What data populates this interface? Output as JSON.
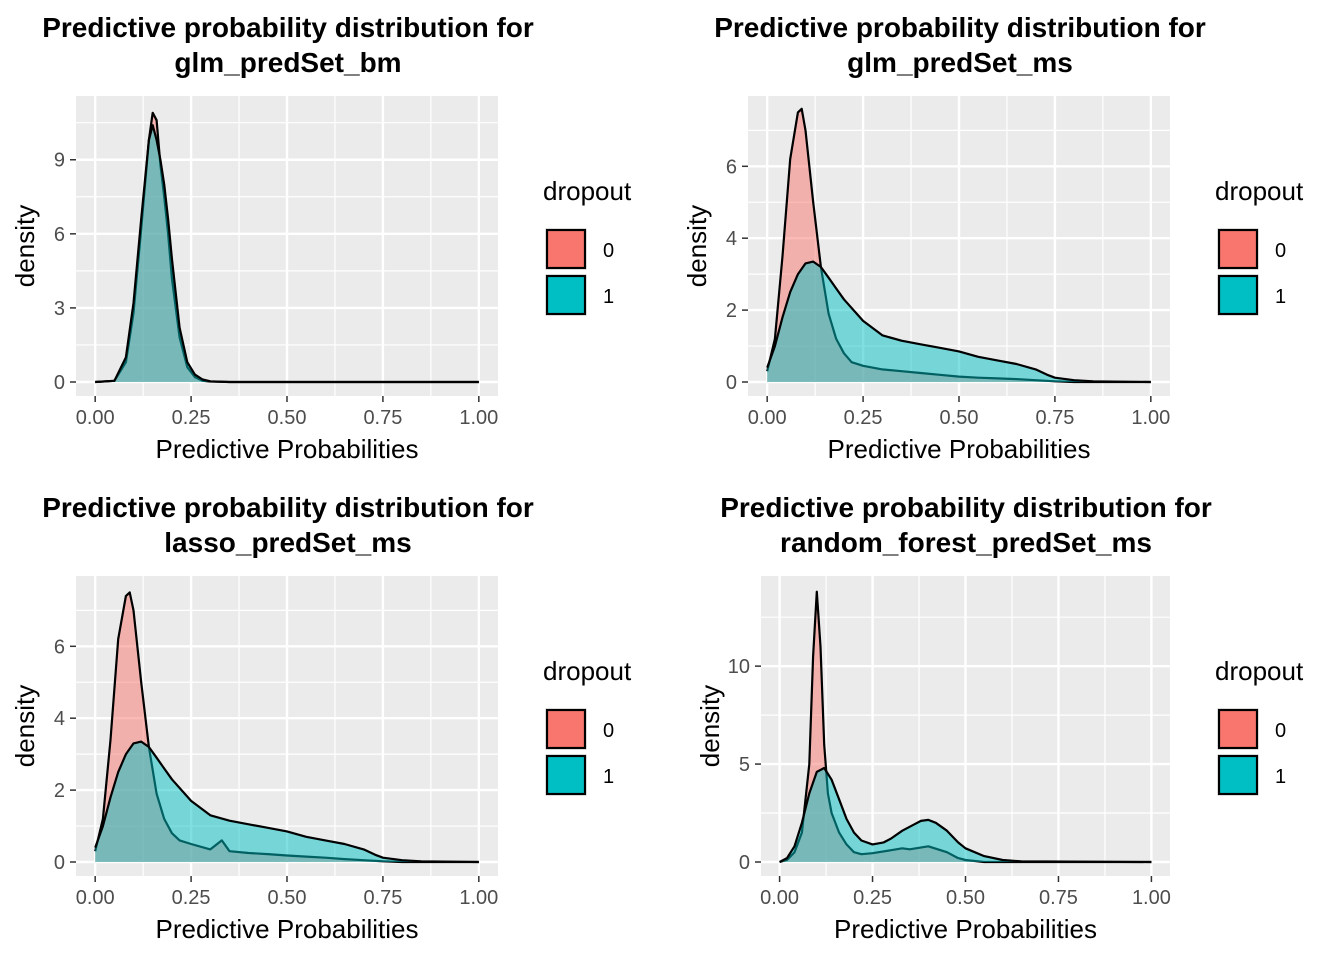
{
  "chart_data": [
    {
      "type": "area",
      "title_lines": [
        "Predictive probability distribution for",
        "glm_predSet_bm"
      ],
      "xlabel": "Predictive Probabilities",
      "ylabel": "density",
      "xlim": [
        0,
        1
      ],
      "ylim": [
        0,
        11.5
      ],
      "xticks": [
        0,
        0.25,
        0.5,
        0.75,
        1
      ],
      "xtick_labels": [
        "0.00",
        "0.25",
        "0.50",
        "0.75",
        "1.00"
      ],
      "yticks": [
        0,
        3,
        6,
        9
      ],
      "ytick_labels": [
        "0",
        "3",
        "6",
        "9"
      ],
      "grid": true,
      "legend": {
        "title": "dropout",
        "position": "right",
        "entries": [
          "0",
          "1"
        ]
      },
      "series": [
        {
          "name": "0",
          "color": "#F8766D",
          "x": [
            0.0,
            0.05,
            0.08,
            0.1,
            0.12,
            0.14,
            0.15,
            0.16,
            0.17,
            0.18,
            0.19,
            0.2,
            0.22,
            0.24,
            0.26,
            0.28,
            0.3,
            0.35,
            1.0
          ],
          "y": [
            0,
            0.05,
            0.8,
            2.8,
            6.2,
            9.8,
            10.9,
            10.6,
            8.8,
            7.5,
            6.0,
            4.2,
            1.8,
            0.6,
            0.2,
            0.05,
            0.02,
            0,
            0
          ]
        },
        {
          "name": "1",
          "color": "#00BFC4",
          "x": [
            0.0,
            0.05,
            0.08,
            0.1,
            0.12,
            0.14,
            0.15,
            0.16,
            0.17,
            0.18,
            0.19,
            0.2,
            0.22,
            0.24,
            0.26,
            0.28,
            0.3,
            0.35,
            1.0
          ],
          "y": [
            0,
            0.05,
            1.0,
            3.2,
            6.6,
            9.8,
            10.4,
            9.8,
            9.0,
            8.0,
            6.6,
            5.0,
            2.2,
            0.8,
            0.3,
            0.1,
            0.03,
            0,
            0
          ]
        }
      ]
    },
    {
      "type": "area",
      "title_lines": [
        "Predictive probability distribution for",
        "glm_predSet_ms"
      ],
      "xlabel": "Predictive Probabilities",
      "ylabel": "density",
      "xlim": [
        0,
        1
      ],
      "ylim": [
        0,
        7.9
      ],
      "xticks": [
        0,
        0.25,
        0.5,
        0.75,
        1
      ],
      "xtick_labels": [
        "0.00",
        "0.25",
        "0.50",
        "0.75",
        "1.00"
      ],
      "yticks": [
        0,
        2,
        4,
        6
      ],
      "ytick_labels": [
        "0",
        "2",
        "4",
        "6"
      ],
      "grid": true,
      "legend": {
        "title": "dropout",
        "position": "right",
        "entries": [
          "0",
          "1"
        ]
      },
      "series": [
        {
          "name": "0",
          "color": "#F8766D",
          "x": [
            0.0,
            0.02,
            0.04,
            0.06,
            0.08,
            0.09,
            0.1,
            0.12,
            0.14,
            0.16,
            0.18,
            0.2,
            0.22,
            0.25,
            0.3,
            0.35,
            0.4,
            0.45,
            0.5,
            0.55,
            0.6,
            0.65,
            0.7,
            0.75,
            0.8,
            1.0
          ],
          "y": [
            0.3,
            1.2,
            3.5,
            6.2,
            7.5,
            7.6,
            7.0,
            5.0,
            3.2,
            1.9,
            1.2,
            0.8,
            0.55,
            0.45,
            0.35,
            0.3,
            0.25,
            0.2,
            0.15,
            0.12,
            0.1,
            0.08,
            0.05,
            0.02,
            0,
            0
          ]
        },
        {
          "name": "1",
          "color": "#00BFC4",
          "x": [
            0.0,
            0.02,
            0.04,
            0.06,
            0.08,
            0.1,
            0.12,
            0.14,
            0.16,
            0.18,
            0.2,
            0.25,
            0.3,
            0.35,
            0.4,
            0.45,
            0.5,
            0.55,
            0.6,
            0.65,
            0.7,
            0.73,
            0.75,
            0.8,
            0.85,
            1.0
          ],
          "y": [
            0.4,
            1.0,
            1.8,
            2.5,
            3.0,
            3.3,
            3.35,
            3.2,
            2.9,
            2.6,
            2.3,
            1.7,
            1.3,
            1.15,
            1.05,
            0.95,
            0.85,
            0.7,
            0.6,
            0.5,
            0.35,
            0.2,
            0.12,
            0.05,
            0.02,
            0
          ]
        }
      ]
    },
    {
      "type": "area",
      "title_lines": [
        "Predictive probability distribution for",
        "lasso_predSet_ms"
      ],
      "xlabel": "Predictive Probabilities",
      "ylabel": "density",
      "xlim": [
        0,
        1
      ],
      "ylim": [
        0,
        7.9
      ],
      "xticks": [
        0,
        0.25,
        0.5,
        0.75,
        1
      ],
      "xtick_labels": [
        "0.00",
        "0.25",
        "0.50",
        "0.75",
        "1.00"
      ],
      "yticks": [
        0,
        2,
        4,
        6
      ],
      "ytick_labels": [
        "0",
        "2",
        "4",
        "6"
      ],
      "grid": true,
      "legend": {
        "title": "dropout",
        "position": "right",
        "entries": [
          "0",
          "1"
        ]
      },
      "series": [
        {
          "name": "0",
          "color": "#F8766D",
          "x": [
            0.0,
            0.02,
            0.04,
            0.06,
            0.08,
            0.09,
            0.1,
            0.12,
            0.14,
            0.16,
            0.18,
            0.2,
            0.22,
            0.25,
            0.3,
            0.33,
            0.35,
            0.4,
            0.45,
            0.5,
            0.55,
            0.6,
            0.65,
            0.7,
            0.75,
            0.8,
            1.0
          ],
          "y": [
            0.3,
            1.2,
            3.4,
            6.2,
            7.4,
            7.5,
            7.0,
            5.0,
            3.2,
            1.9,
            1.2,
            0.8,
            0.6,
            0.5,
            0.35,
            0.6,
            0.3,
            0.25,
            0.22,
            0.18,
            0.15,
            0.12,
            0.08,
            0.05,
            0.02,
            0,
            0
          ]
        },
        {
          "name": "1",
          "color": "#00BFC4",
          "x": [
            0.0,
            0.02,
            0.04,
            0.06,
            0.08,
            0.1,
            0.12,
            0.14,
            0.16,
            0.18,
            0.2,
            0.25,
            0.3,
            0.35,
            0.4,
            0.45,
            0.5,
            0.55,
            0.6,
            0.65,
            0.7,
            0.73,
            0.75,
            0.8,
            0.85,
            1.0
          ],
          "y": [
            0.4,
            1.0,
            1.8,
            2.5,
            3.0,
            3.3,
            3.35,
            3.2,
            2.9,
            2.6,
            2.3,
            1.7,
            1.3,
            1.15,
            1.05,
            0.95,
            0.85,
            0.7,
            0.6,
            0.5,
            0.35,
            0.2,
            0.12,
            0.05,
            0.02,
            0
          ]
        }
      ]
    },
    {
      "type": "area",
      "title_lines": [
        "Predictive probability distribution for",
        "random_forest_predSet_ms"
      ],
      "xlabel": "Predictive Probabilities",
      "ylabel": "density",
      "xlim": [
        0,
        1
      ],
      "ylim": [
        0,
        14.5
      ],
      "xticks": [
        0,
        0.25,
        0.5,
        0.75,
        1
      ],
      "xtick_labels": [
        "0.00",
        "0.25",
        "0.50",
        "0.75",
        "1.00"
      ],
      "yticks": [
        0,
        5,
        10
      ],
      "ytick_labels": [
        "0",
        "5",
        "10"
      ],
      "grid": true,
      "legend": {
        "title": "dropout",
        "position": "right",
        "entries": [
          "0",
          "1"
        ]
      },
      "series": [
        {
          "name": "0",
          "color": "#F8766D",
          "x": [
            0.0,
            0.02,
            0.04,
            0.06,
            0.08,
            0.09,
            0.1,
            0.11,
            0.12,
            0.13,
            0.14,
            0.16,
            0.18,
            0.2,
            0.22,
            0.25,
            0.3,
            0.33,
            0.35,
            0.4,
            0.45,
            0.48,
            0.5,
            0.55,
            1.0
          ],
          "y": [
            0,
            0.1,
            0.5,
            1.5,
            5.0,
            10.5,
            13.8,
            11.0,
            6.0,
            3.5,
            2.5,
            1.5,
            0.9,
            0.5,
            0.4,
            0.45,
            0.6,
            0.7,
            0.65,
            0.8,
            0.5,
            0.2,
            0.1,
            0,
            0
          ]
        },
        {
          "name": "1",
          "color": "#00BFC4",
          "x": [
            0.0,
            0.02,
            0.04,
            0.06,
            0.08,
            0.1,
            0.12,
            0.14,
            0.16,
            0.18,
            0.2,
            0.22,
            0.25,
            0.28,
            0.3,
            0.33,
            0.36,
            0.38,
            0.4,
            0.42,
            0.45,
            0.48,
            0.5,
            0.55,
            0.6,
            0.65,
            1.0
          ],
          "y": [
            0,
            0.2,
            0.8,
            2.0,
            3.5,
            4.6,
            4.8,
            4.2,
            3.2,
            2.2,
            1.5,
            1.1,
            0.9,
            1.0,
            1.2,
            1.6,
            1.9,
            2.1,
            2.15,
            2.0,
            1.6,
            1.0,
            0.7,
            0.3,
            0.1,
            0.03,
            0
          ]
        }
      ]
    }
  ]
}
